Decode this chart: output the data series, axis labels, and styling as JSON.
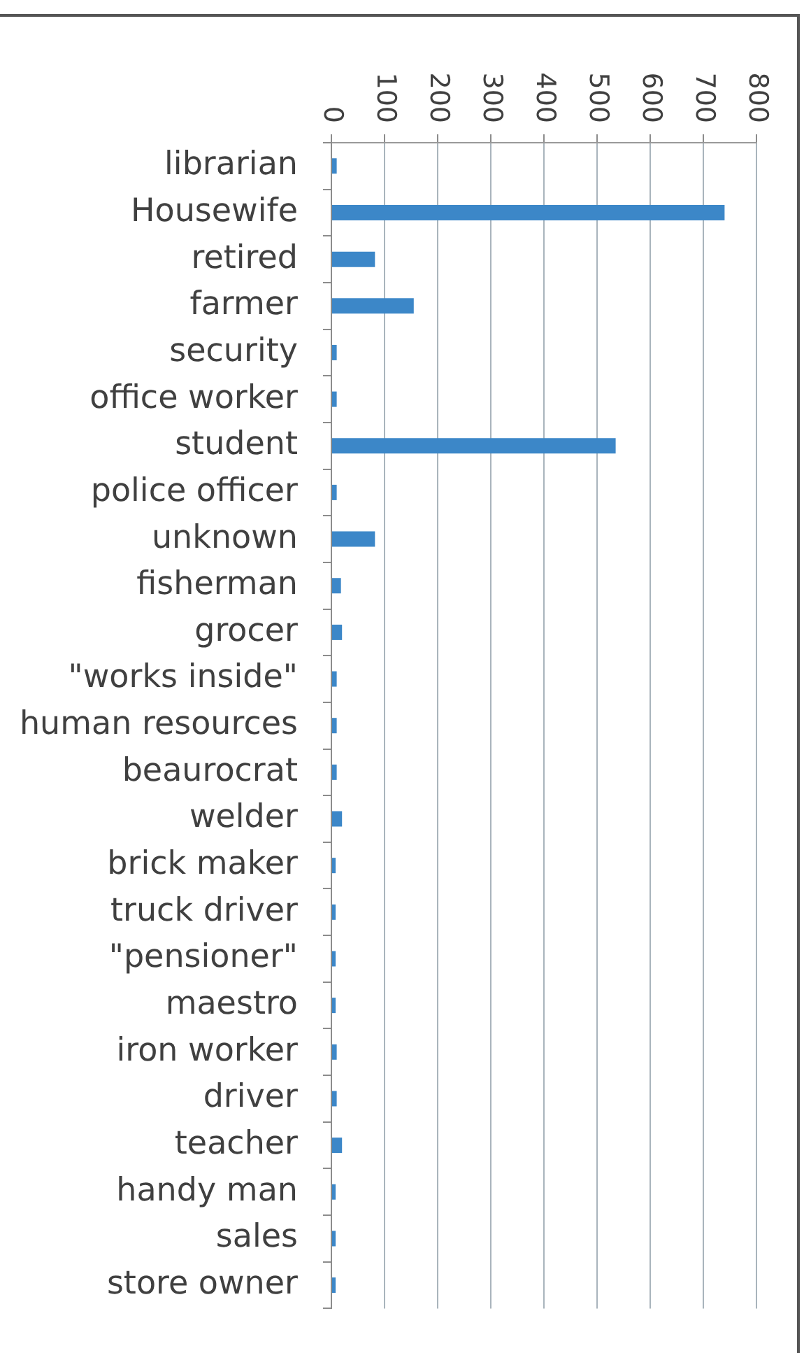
{
  "chart_data": {
    "type": "bar",
    "orientation": "horizontal",
    "categories": [
      "librarian",
      "Housewife",
      "retired",
      "farmer",
      "security",
      "office worker",
      "student",
      "police officer",
      "unknown",
      "fisherman",
      "grocer",
      "\"works inside\"",
      "human resources",
      "beaurocrat",
      "welder",
      "brick maker",
      "truck driver",
      "\"pensioner\"",
      "maestro",
      "iron worker",
      "driver",
      "teacher",
      "handy man",
      "sales",
      "store owner"
    ],
    "values": [
      10,
      740,
      82,
      155,
      10,
      10,
      535,
      10,
      82,
      18,
      20,
      10,
      10,
      10,
      20,
      8,
      8,
      8,
      8,
      10,
      10,
      20,
      8,
      8,
      8
    ],
    "color": "#3c87c8",
    "xlim": [
      0,
      800
    ],
    "xticks": [
      0,
      100,
      200,
      300,
      400,
      500,
      600,
      700,
      800
    ],
    "grid": "x"
  }
}
